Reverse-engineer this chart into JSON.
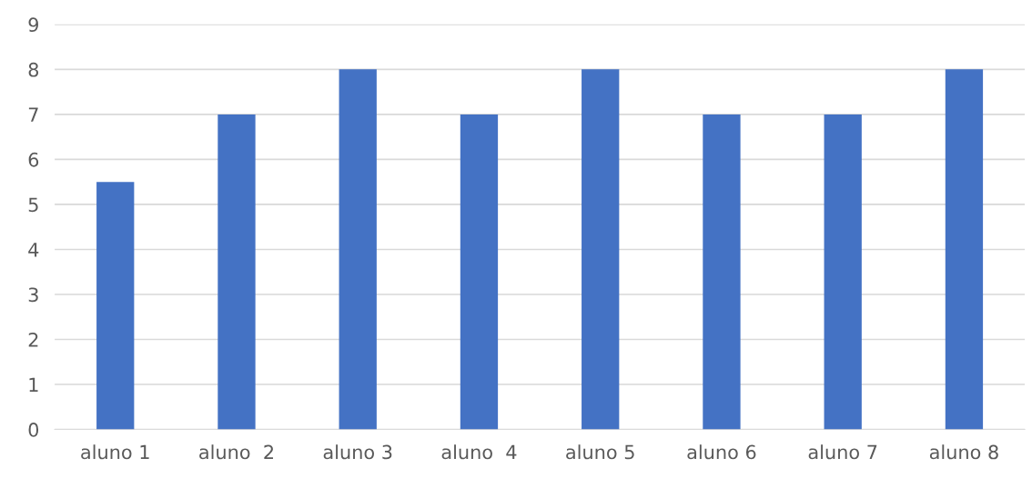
{
  "chart_data": {
    "type": "bar",
    "categories": [
      "aluno 1",
      "aluno  2",
      "aluno 3",
      "aluno  4",
      "aluno 5",
      "aluno 6",
      "aluno 7",
      "aluno 8"
    ],
    "values": [
      5.5,
      7,
      8,
      7,
      8,
      7,
      7,
      8
    ],
    "color": "#4472c4",
    "ylim": [
      0,
      9
    ],
    "yticks": [
      0,
      1,
      2,
      3,
      4,
      5,
      6,
      7,
      8,
      9
    ],
    "grid": "y"
  }
}
